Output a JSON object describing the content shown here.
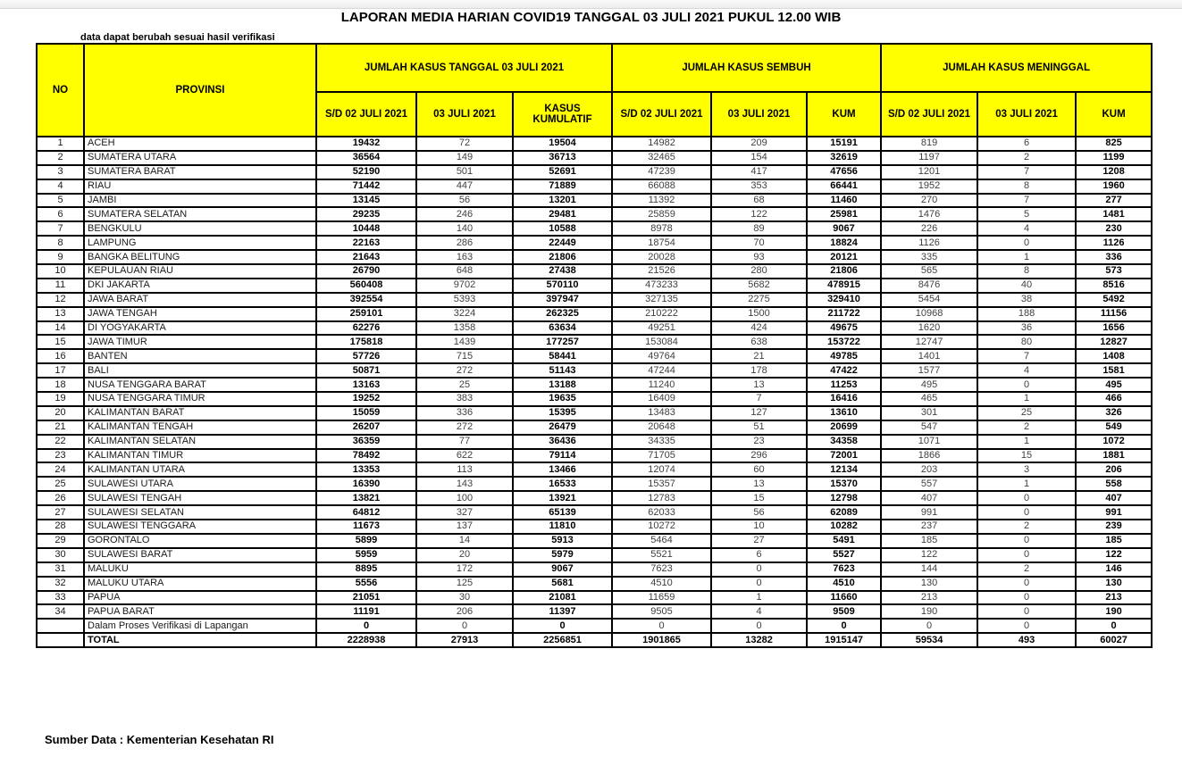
{
  "title": "LAPORAN MEDIA HARIAN COVID19 TANGGAL 03 JULI 2021 PUKUL 12.00 WIB",
  "note": "data dapat berubah sesuai hasil verifikasi",
  "source": "Sumber Data : Kementerian Kesehatan RI",
  "colors": {
    "header_bg": "#FFFF00",
    "border": "#000000",
    "regular_number_text": "#404040",
    "bold_number_text": "#000000"
  },
  "table": {
    "headers": {
      "no": "NO",
      "provinsi": "PROVINSI",
      "groups": [
        {
          "label": "JUMLAH KASUS TANGGAL 03 JULI 2021",
          "sub": [
            "S/D 02 JULI 2021",
            "03 JULI 2021",
            "KASUS KUMULATIF"
          ]
        },
        {
          "label": "JUMLAH KASUS SEMBUH",
          "sub": [
            "S/D 02 JULI 2021",
            "03 JULI 2021",
            "KUM"
          ]
        },
        {
          "label": "JUMLAH KASUS MENINGGAL",
          "sub": [
            "S/D 02 JULI 2021",
            "03 JULI 2021",
            "KUM"
          ]
        }
      ]
    },
    "rows": [
      {
        "no": "1",
        "provinsi": "ACEH",
        "values": [
          19432,
          72,
          19504,
          14982,
          209,
          15191,
          819,
          6,
          825
        ]
      },
      {
        "no": "2",
        "provinsi": "SUMATERA UTARA",
        "values": [
          36564,
          149,
          36713,
          32465,
          154,
          32619,
          1197,
          2,
          1199
        ]
      },
      {
        "no": "3",
        "provinsi": "SUMATERA BARAT",
        "values": [
          52190,
          501,
          52691,
          47239,
          417,
          47656,
          1201,
          7,
          1208
        ]
      },
      {
        "no": "4",
        "provinsi": "RIAU",
        "values": [
          71442,
          447,
          71889,
          66088,
          353,
          66441,
          1952,
          8,
          1960
        ]
      },
      {
        "no": "5",
        "provinsi": "JAMBI",
        "values": [
          13145,
          56,
          13201,
          11392,
          68,
          11460,
          270,
          7,
          277
        ]
      },
      {
        "no": "6",
        "provinsi": "SUMATERA SELATAN",
        "values": [
          29235,
          246,
          29481,
          25859,
          122,
          25981,
          1476,
          5,
          1481
        ]
      },
      {
        "no": "7",
        "provinsi": "BENGKULU",
        "values": [
          10448,
          140,
          10588,
          8978,
          89,
          9067,
          226,
          4,
          230
        ]
      },
      {
        "no": "8",
        "provinsi": "LAMPUNG",
        "values": [
          22163,
          286,
          22449,
          18754,
          70,
          18824,
          1126,
          0,
          1126
        ]
      },
      {
        "no": "9",
        "provinsi": "BANGKA BELITUNG",
        "values": [
          21643,
          163,
          21806,
          20028,
          93,
          20121,
          335,
          1,
          336
        ]
      },
      {
        "no": "10",
        "provinsi": "KEPULAUAN RIAU",
        "values": [
          26790,
          648,
          27438,
          21526,
          280,
          21806,
          565,
          8,
          573
        ]
      },
      {
        "no": "11",
        "provinsi": "DKI JAKARTA",
        "values": [
          560408,
          9702,
          570110,
          473233,
          5682,
          478915,
          8476,
          40,
          8516
        ]
      },
      {
        "no": "12",
        "provinsi": "JAWA BARAT",
        "values": [
          392554,
          5393,
          397947,
          327135,
          2275,
          329410,
          5454,
          38,
          5492
        ]
      },
      {
        "no": "13",
        "provinsi": "JAWA TENGAH",
        "values": [
          259101,
          3224,
          262325,
          210222,
          1500,
          211722,
          10968,
          188,
          11156
        ]
      },
      {
        "no": "14",
        "provinsi": "DI YOGYAKARTA",
        "values": [
          62276,
          1358,
          63634,
          49251,
          424,
          49675,
          1620,
          36,
          1656
        ]
      },
      {
        "no": "15",
        "provinsi": "JAWA TIMUR",
        "values": [
          175818,
          1439,
          177257,
          153084,
          638,
          153722,
          12747,
          80,
          12827
        ]
      },
      {
        "no": "16",
        "provinsi": "BANTEN",
        "values": [
          57726,
          715,
          58441,
          49764,
          21,
          49785,
          1401,
          7,
          1408
        ]
      },
      {
        "no": "17",
        "provinsi": "BALI",
        "values": [
          50871,
          272,
          51143,
          47244,
          178,
          47422,
          1577,
          4,
          1581
        ]
      },
      {
        "no": "18",
        "provinsi": "NUSA TENGGARA BARAT",
        "values": [
          13163,
          25,
          13188,
          11240,
          13,
          11253,
          495,
          0,
          495
        ]
      },
      {
        "no": "19",
        "provinsi": "NUSA TENGGARA TIMUR",
        "values": [
          19252,
          383,
          19635,
          16409,
          7,
          16416,
          465,
          1,
          466
        ]
      },
      {
        "no": "20",
        "provinsi": "KALIMANTAN BARAT",
        "values": [
          15059,
          336,
          15395,
          13483,
          127,
          13610,
          301,
          25,
          326
        ]
      },
      {
        "no": "21",
        "provinsi": "KALIMANTAN TENGAH",
        "values": [
          26207,
          272,
          26479,
          20648,
          51,
          20699,
          547,
          2,
          549
        ]
      },
      {
        "no": "22",
        "provinsi": "KALIMANTAN SELATAN",
        "values": [
          36359,
          77,
          36436,
          34335,
          23,
          34358,
          1071,
          1,
          1072
        ]
      },
      {
        "no": "23",
        "provinsi": "KALIMANTAN TIMUR",
        "values": [
          78492,
          622,
          79114,
          71705,
          296,
          72001,
          1866,
          15,
          1881
        ]
      },
      {
        "no": "24",
        "provinsi": "KALIMANTAN UTARA",
        "values": [
          13353,
          113,
          13466,
          12074,
          60,
          12134,
          203,
          3,
          206
        ]
      },
      {
        "no": "25",
        "provinsi": "SULAWESI UTARA",
        "values": [
          16390,
          143,
          16533,
          15357,
          13,
          15370,
          557,
          1,
          558
        ]
      },
      {
        "no": "26",
        "provinsi": "SULAWESI TENGAH",
        "values": [
          13821,
          100,
          13921,
          12783,
          15,
          12798,
          407,
          0,
          407
        ]
      },
      {
        "no": "27",
        "provinsi": "SULAWESI SELATAN",
        "values": [
          64812,
          327,
          65139,
          62033,
          56,
          62089,
          991,
          0,
          991
        ]
      },
      {
        "no": "28",
        "provinsi": "SULAWESI TENGGARA",
        "values": [
          11673,
          137,
          11810,
          10272,
          10,
          10282,
          237,
          2,
          239
        ]
      },
      {
        "no": "29",
        "provinsi": "GORONTALO",
        "values": [
          5899,
          14,
          5913,
          5464,
          27,
          5491,
          185,
          0,
          185
        ]
      },
      {
        "no": "30",
        "provinsi": "SULAWESI BARAT",
        "values": [
          5959,
          20,
          5979,
          5521,
          6,
          5527,
          122,
          0,
          122
        ]
      },
      {
        "no": "31",
        "provinsi": "MALUKU",
        "values": [
          8895,
          172,
          9067,
          7623,
          0,
          7623,
          144,
          2,
          146
        ]
      },
      {
        "no": "32",
        "provinsi": "MALUKU UTARA",
        "values": [
          5556,
          125,
          5681,
          4510,
          0,
          4510,
          130,
          0,
          130
        ]
      },
      {
        "no": "33",
        "provinsi": "PAPUA",
        "values": [
          21051,
          30,
          21081,
          11659,
          1,
          11660,
          213,
          0,
          213
        ]
      },
      {
        "no": "34",
        "provinsi": "PAPUA BARAT",
        "values": [
          11191,
          206,
          11397,
          9505,
          4,
          9509,
          190,
          0,
          190
        ]
      }
    ],
    "verification_row": {
      "no": "",
      "provinsi": "Dalam Proses Verifikasi di Lapangan",
      "values": [
        0,
        0,
        0,
        0,
        0,
        0,
        0,
        0,
        0
      ]
    },
    "total_row": {
      "no": "",
      "provinsi": "TOTAL",
      "values": [
        2228938,
        27913,
        2256851,
        1901865,
        13282,
        1915147,
        59534,
        493,
        60027
      ]
    }
  }
}
